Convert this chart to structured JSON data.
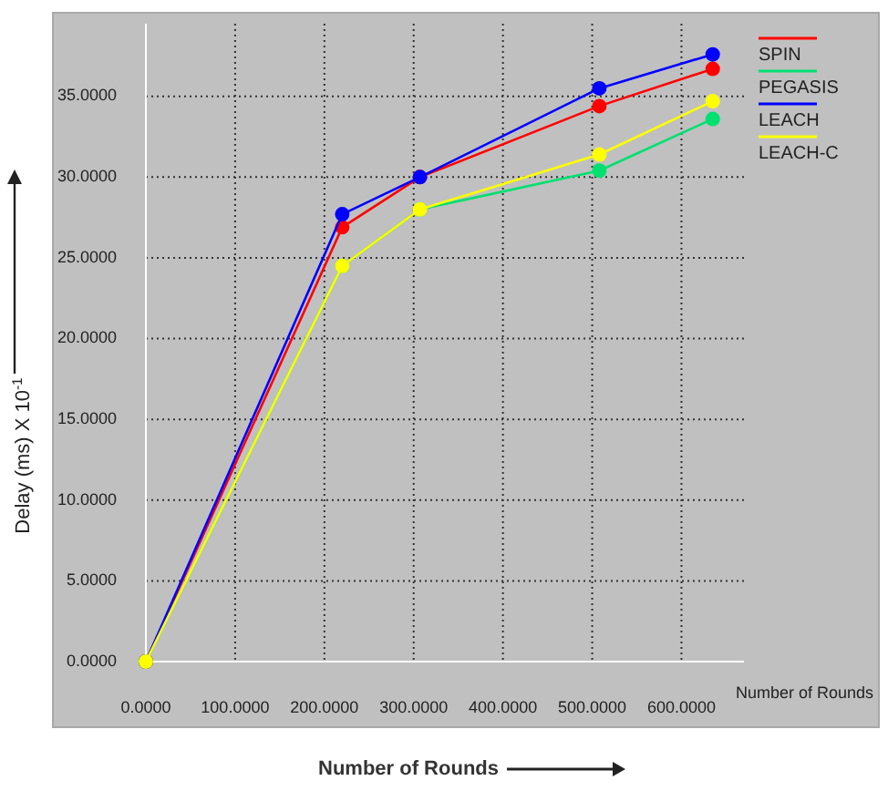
{
  "chart_data": {
    "type": "line",
    "xlabel": "Number of Rounds",
    "ylabel": "Delay (ms) X 10$^{-1}$",
    "annotations": [
      "Number of Rounds"
    ],
    "x": [
      0,
      220,
      307,
      508,
      635
    ],
    "series": [
      {
        "name": "SPIN",
        "color": "#ff0000",
        "values": [
          0,
          26.9,
          30.0,
          34.4,
          36.7
        ]
      },
      {
        "name": "PEGASIS",
        "color": "#00e070",
        "values": [
          0,
          24.5,
          28.0,
          30.4,
          33.6
        ]
      },
      {
        "name": "LEACH",
        "color": "#0000ff",
        "values": [
          0,
          27.7,
          30.0,
          35.5,
          37.6
        ]
      },
      {
        "name": "LEACH-C",
        "color": "#ffff00",
        "values": [
          0,
          24.5,
          28.0,
          31.4,
          34.7
        ]
      }
    ],
    "xlim": [
      0,
      670
    ],
    "ylim": [
      0,
      39.5
    ],
    "xticks": [
      {
        "value": 0,
        "label": "0.0000"
      },
      {
        "value": 100,
        "label": "100.0000"
      },
      {
        "value": 200,
        "label": "200.0000"
      },
      {
        "value": 300,
        "label": "300.0000"
      },
      {
        "value": 400,
        "label": "400.0000"
      },
      {
        "value": 500,
        "label": "500.0000"
      },
      {
        "value": 600,
        "label": "600.0000"
      }
    ],
    "yticks": [
      {
        "value": 0,
        "label": "0.0000"
      },
      {
        "value": 5,
        "label": "5.0000"
      },
      {
        "value": 10,
        "label": "10.0000"
      },
      {
        "value": 15,
        "label": "15.0000"
      },
      {
        "value": 20,
        "label": "20.0000"
      },
      {
        "value": 25,
        "label": "25.0000"
      },
      {
        "value": 30,
        "label": "30.0000"
      },
      {
        "value": 35,
        "label": "35.0000"
      }
    ],
    "grid": true,
    "legend": "top right",
    "marker": "circle",
    "line_style": "solid"
  }
}
